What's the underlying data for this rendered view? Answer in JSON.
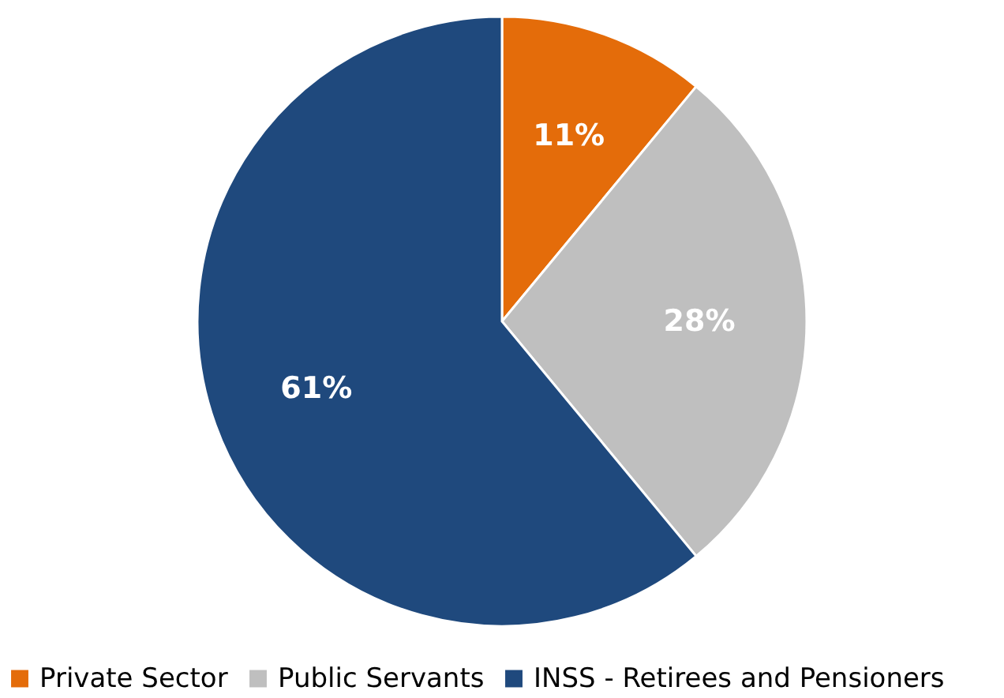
{
  "chart_data": {
    "type": "pie",
    "categories": [
      "Private Sector",
      "Public Servants",
      "INSS - Retirees and Pensioners"
    ],
    "values": [
      11,
      28,
      61
    ],
    "colors": [
      "#e46c0a",
      "#bfbfbf",
      "#1f497d"
    ],
    "value_labels": [
      "11%",
      "28%",
      "61%"
    ],
    "legend": "bottom"
  }
}
